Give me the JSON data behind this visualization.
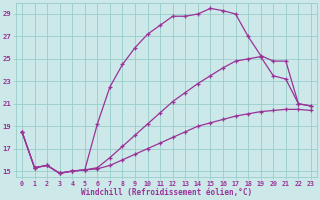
{
  "xlabel": "Windchill (Refroidissement éolien,°C)",
  "bg_color": "#cce8e8",
  "grid_color": "#99cccc",
  "line_color": "#993399",
  "xlim": [
    -0.5,
    23.5
  ],
  "ylim": [
    14.5,
    30.0
  ],
  "yticks": [
    15,
    17,
    19,
    21,
    23,
    25,
    27,
    29
  ],
  "xticks": [
    0,
    1,
    2,
    3,
    4,
    5,
    6,
    7,
    8,
    9,
    10,
    11,
    12,
    13,
    14,
    15,
    16,
    17,
    18,
    19,
    20,
    21,
    22,
    23
  ],
  "line_top_x": [
    0,
    1,
    2,
    3,
    4,
    5,
    6,
    7,
    8,
    9,
    10,
    11,
    12,
    13,
    14,
    15,
    16,
    17,
    18,
    19,
    20,
    21,
    22,
    23
  ],
  "line_top_y": [
    18.5,
    15.3,
    15.5,
    14.8,
    15.0,
    15.1,
    19.2,
    22.5,
    24.5,
    26.0,
    27.2,
    28.0,
    28.8,
    28.8,
    29.0,
    29.5,
    29.3,
    29.0,
    27.0,
    25.3,
    24.8,
    24.8,
    21.0,
    20.8
  ],
  "line_mid_x": [
    0,
    1,
    2,
    3,
    4,
    5,
    6,
    7,
    8,
    9,
    10,
    11,
    12,
    13,
    14,
    15,
    16,
    17,
    18,
    19,
    20,
    21,
    22,
    23
  ],
  "line_mid_y": [
    18.5,
    15.3,
    15.5,
    14.8,
    15.0,
    15.1,
    15.3,
    16.2,
    17.2,
    18.2,
    19.2,
    20.2,
    21.2,
    22.0,
    22.8,
    23.5,
    24.2,
    24.8,
    25.0,
    25.2,
    23.5,
    23.2,
    21.0,
    20.8
  ],
  "line_bot_x": [
    0,
    1,
    2,
    3,
    4,
    5,
    6,
    7,
    8,
    9,
    10,
    11,
    12,
    13,
    14,
    15,
    16,
    17,
    18,
    19,
    20,
    21,
    22,
    23
  ],
  "line_bot_y": [
    18.5,
    15.3,
    15.5,
    14.8,
    15.0,
    15.1,
    15.2,
    15.5,
    16.0,
    16.5,
    17.0,
    17.5,
    18.0,
    18.5,
    19.0,
    19.3,
    19.6,
    19.9,
    20.1,
    20.3,
    20.4,
    20.5,
    20.5,
    20.4
  ]
}
